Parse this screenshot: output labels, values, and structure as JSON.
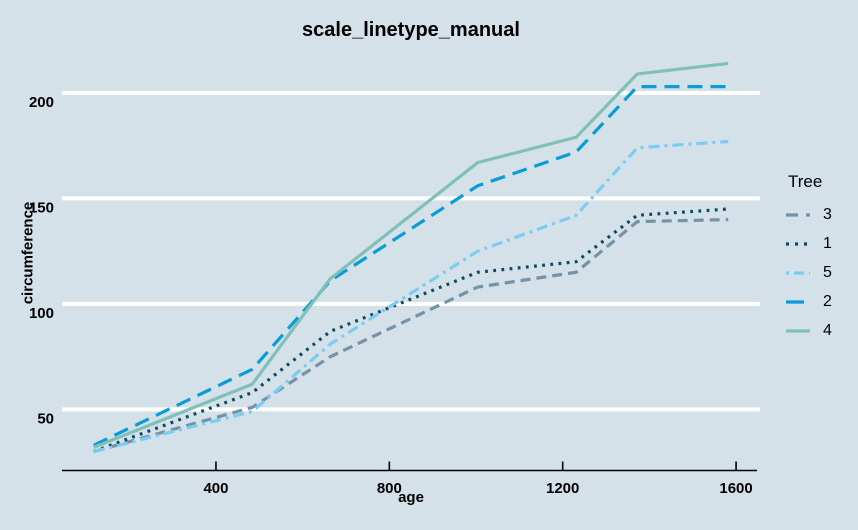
{
  "chart_data": {
    "type": "line",
    "title": "scale_linetype_manual",
    "xlabel": "age",
    "ylabel": "circumference",
    "x": [
      118,
      484,
      664,
      1004,
      1231,
      1372,
      1582
    ],
    "series": [
      {
        "name": "3",
        "color": "#7493a6",
        "linetype": "dashed",
        "values": [
          30,
          51,
          75,
          108,
          115,
          139,
          140
        ]
      },
      {
        "name": "1",
        "color": "#0b4a63",
        "linetype": "dotted",
        "values": [
          30,
          58,
          87,
          115,
          120,
          142,
          145
        ]
      },
      {
        "name": "5",
        "color": "#7cccf2",
        "linetype": "dotdash",
        "values": [
          30,
          49,
          81,
          125,
          142,
          174,
          177
        ]
      },
      {
        "name": "2",
        "color": "#089dd6",
        "linetype": "longdash",
        "values": [
          33,
          69,
          111,
          156,
          172,
          203,
          203
        ]
      },
      {
        "name": "4",
        "color": "#7fc0b8",
        "linetype": "solid",
        "values": [
          32,
          62,
          112,
          167,
          179,
          209,
          214
        ]
      }
    ],
    "xticks": [
      400,
      800,
      1200,
      1600
    ],
    "yticks": [
      50,
      100,
      150,
      200
    ],
    "xlim": [
      44.8,
      1655.2
    ],
    "ylim": [
      20.8,
      223.2
    ],
    "grid": "horizontal-major-only",
    "legend": {
      "title": "Tree",
      "position": "right",
      "entries": [
        "3",
        "1",
        "5",
        "2",
        "4"
      ]
    },
    "colors": {
      "background": "#d4e1e9",
      "gridline": "#ffffff",
      "axis_line": "#000000",
      "text": "#000000"
    }
  }
}
